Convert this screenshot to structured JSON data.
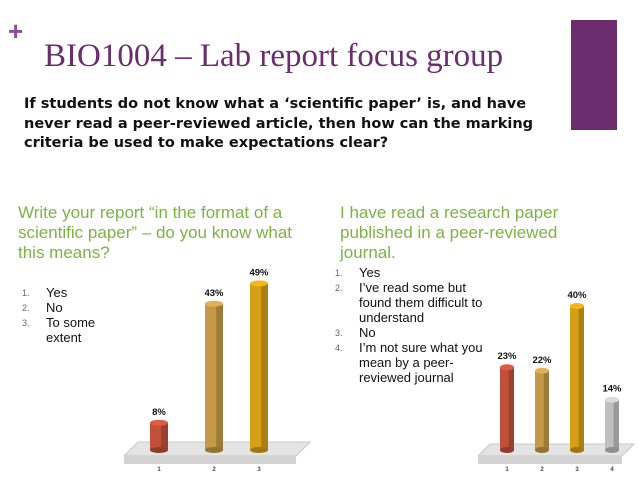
{
  "slide": {
    "title": "BIO1004 – Lab report focus group",
    "intro": "If students do not know what a ‘scientific paper’ is, and have never read a peer-reviewed article, then how can the marking criteria be used to make expectations clear?",
    "accent_color": "#6b2d6e",
    "question_color": "#7cb342"
  },
  "left": {
    "question": "Write your report “in the format of a scientific paper” – do you know what this means?",
    "options": [
      {
        "num": "1.",
        "label": "Yes"
      },
      {
        "num": "2.",
        "label": "No"
      },
      {
        "num": "3.",
        "label": "To some extent"
      }
    ]
  },
  "right": {
    "question": "I have read a research paper published in a peer-reviewed journal.",
    "options": [
      {
        "num": "1.",
        "label": "Yes"
      },
      {
        "num": "2.",
        "label": "I’ve read some but found them difficult to understand"
      },
      {
        "num": "3.",
        "label": "No"
      },
      {
        "num": "4.",
        "label": "I’m not sure what you mean by a peer-reviewed journal"
      }
    ]
  },
  "chart_data": [
    {
      "type": "bar",
      "categories": [
        "1",
        "2",
        "3"
      ],
      "values": [
        8,
        43,
        49
      ],
      "labels": [
        "8%",
        "43%",
        "49%"
      ],
      "colors": [
        "#c0503a",
        "#c49a48",
        "#d4a017"
      ],
      "ylim": [
        0,
        50
      ]
    },
    {
      "type": "bar",
      "categories": [
        "1",
        "2",
        "3",
        "4"
      ],
      "values": [
        23,
        22,
        40,
        14
      ],
      "labels": [
        "23%",
        "22%",
        "40%",
        "14%"
      ],
      "colors": [
        "#c0503a",
        "#c49a48",
        "#d4a017",
        "#bfbfbf"
      ],
      "ylim": [
        0,
        40
      ]
    }
  ]
}
